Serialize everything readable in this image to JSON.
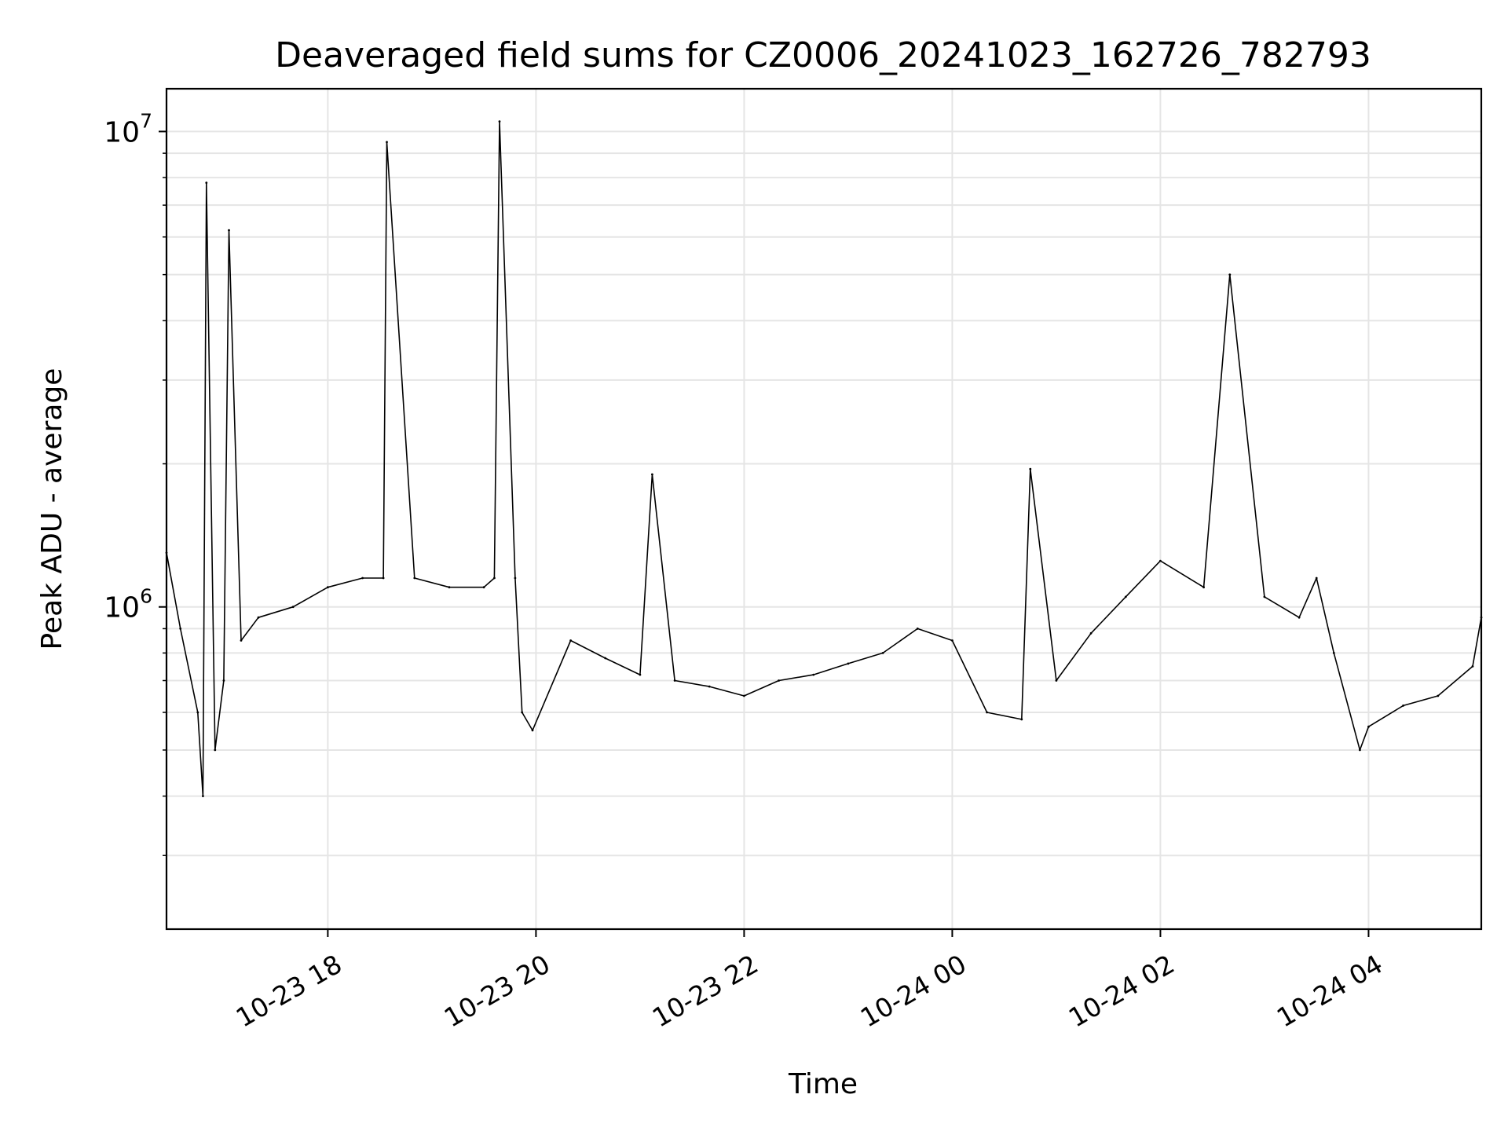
{
  "chart_data": {
    "type": "line",
    "title": "Deaveraged field sums for CZ0006_20241023_162726_782793",
    "xlabel": "Time",
    "ylabel": "Peak ADU - average",
    "y_scale": "log",
    "ylim": [
      210000,
      12300000
    ],
    "xlim": [
      "2024-10-23 16:27",
      "2024-10-24 05:05"
    ],
    "grid": true,
    "line_color": "#000000",
    "x_ticks": [
      {
        "value": "2024-10-23 18:00",
        "label": "10-23 18"
      },
      {
        "value": "2024-10-23 20:00",
        "label": "10-23 20"
      },
      {
        "value": "2024-10-23 22:00",
        "label": "10-23 22"
      },
      {
        "value": "2024-10-24 00:00",
        "label": "10-24 00"
      },
      {
        "value": "2024-10-24 02:00",
        "label": "10-24 02"
      },
      {
        "value": "2024-10-24 04:00",
        "label": "10-24 04"
      }
    ],
    "y_ticks": [
      {
        "value": 1000000,
        "base": "10",
        "exp": "6"
      },
      {
        "value": 10000000,
        "base": "10",
        "exp": "7"
      }
    ],
    "series": [
      {
        "x": [
          "2024-10-23 16:27",
          "2024-10-23 16:35",
          "2024-10-23 16:45",
          "2024-10-23 16:48",
          "2024-10-23 16:50",
          "2024-10-23 16:55",
          "2024-10-23 17:00",
          "2024-10-23 17:03",
          "2024-10-23 17:10",
          "2024-10-23 17:20",
          "2024-10-23 17:40",
          "2024-10-23 18:00",
          "2024-10-23 18:20",
          "2024-10-23 18:32",
          "2024-10-23 18:34",
          "2024-10-23 18:50",
          "2024-10-23 19:10",
          "2024-10-23 19:30",
          "2024-10-23 19:36",
          "2024-10-23 19:39",
          "2024-10-23 19:48",
          "2024-10-23 19:52",
          "2024-10-23 19:58",
          "2024-10-23 20:20",
          "2024-10-23 20:40",
          "2024-10-23 21:00",
          "2024-10-23 21:07",
          "2024-10-23 21:20",
          "2024-10-23 21:40",
          "2024-10-23 22:00",
          "2024-10-23 22:20",
          "2024-10-23 22:40",
          "2024-10-23 23:00",
          "2024-10-23 23:20",
          "2024-10-23 23:40",
          "2024-10-24 00:00",
          "2024-10-24 00:20",
          "2024-10-24 00:40",
          "2024-10-24 00:45",
          "2024-10-24 01:00",
          "2024-10-24 01:20",
          "2024-10-24 01:40",
          "2024-10-24 02:00",
          "2024-10-24 02:25",
          "2024-10-24 02:40",
          "2024-10-24 03:00",
          "2024-10-24 03:20",
          "2024-10-24 03:30",
          "2024-10-24 03:40",
          "2024-10-24 03:55",
          "2024-10-24 04:00",
          "2024-10-24 04:20",
          "2024-10-24 04:40",
          "2024-10-24 05:00",
          "2024-10-24 05:05"
        ],
        "y": [
          1300000,
          900000,
          600000,
          400000,
          7800000,
          500000,
          700000,
          6200000,
          850000,
          950000,
          1000000,
          1100000,
          1150000,
          1150000,
          9500000,
          1150000,
          1100000,
          1100000,
          1150000,
          10500000,
          1150000,
          600000,
          550000,
          850000,
          780000,
          720000,
          1900000,
          700000,
          680000,
          650000,
          700000,
          720000,
          760000,
          800000,
          900000,
          850000,
          600000,
          580000,
          1950000,
          700000,
          880000,
          1050000,
          1250000,
          1100000,
          5000000,
          1050000,
          950000,
          1150000,
          800000,
          500000,
          560000,
          620000,
          650000,
          750000,
          950000
        ]
      }
    ]
  }
}
